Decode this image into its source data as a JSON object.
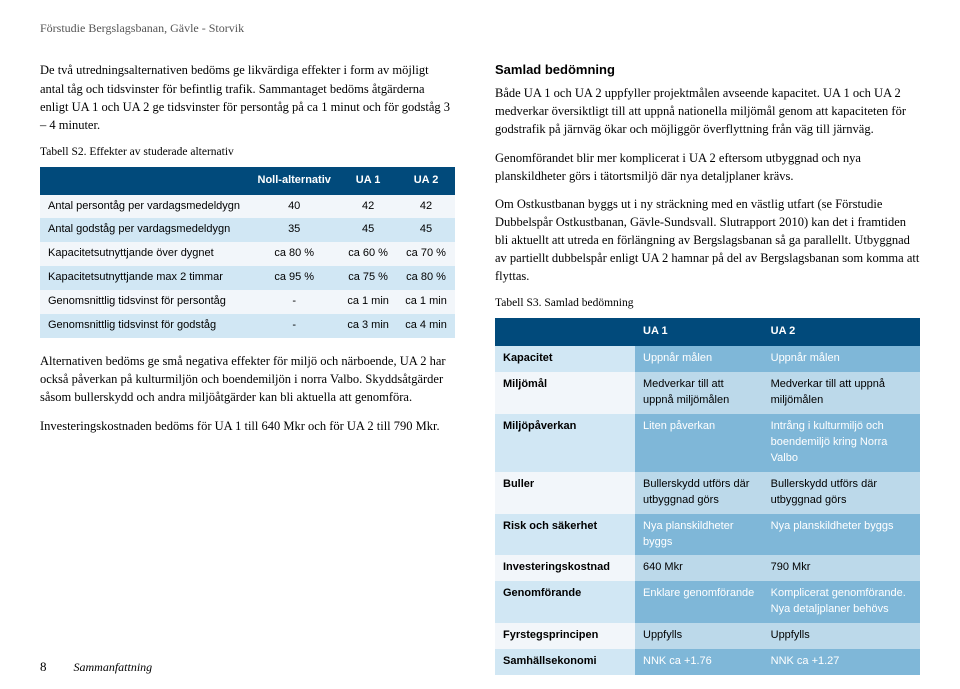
{
  "header": "Förstudie Bergslagsbanan, Gävle - Storvik",
  "left": {
    "p1": "De två utredningsalternativen bedöms ge likvärdiga effekter i form av möjligt antal tåg och tidsvinster för befintlig trafik. Sammantaget bedöms åtgärderna enligt UA 1 och UA 2 ge tidsvinster för persontåg på ca 1 minut och för godståg 3 – 4 minuter.",
    "tcap": "Tabell S2. Effekter av studerade alternativ",
    "tbl": {
      "headers": [
        "",
        "Noll-alternativ",
        "UA 1",
        "UA 2"
      ],
      "rows": [
        [
          "Antal persontåg per vardagsmedeldygn",
          "40",
          "42",
          "42"
        ],
        [
          "Antal godståg per vardagsmedeldygn",
          "35",
          "45",
          "45"
        ],
        [
          "Kapacitetsutnyttjande över dygnet",
          "ca 80 %",
          "ca 60 %",
          "ca 70 %"
        ],
        [
          "Kapacitetsutnyttjande max 2 timmar",
          "ca 95 %",
          "ca 75 %",
          "ca 80 %"
        ],
        [
          "Genomsnittlig tidsvinst för persontåg",
          "-",
          "ca 1 min",
          "ca 1 min"
        ],
        [
          "Genomsnittlig tidsvinst för godståg",
          "-",
          "ca 3 min",
          "ca 4 min"
        ]
      ]
    },
    "p2": "Alternativen bedöms ge små negativa effekter för miljö och närboende, UA 2 har också påverkan på kulturmiljön och boendemiljön i norra Valbo. Skyddsåtgärder såsom bullerskydd och andra miljöåtgärder kan bli aktuella att genomföra.",
    "p3": "Investeringskostnaden bedöms för UA 1 till 640 Mkr och för UA 2 till 790 Mkr."
  },
  "right": {
    "h": "Samlad bedömning",
    "p1": "Både UA 1 och UA 2 uppfyller projektmålen avseende kapacitet. UA 1 och UA 2 medverkar översiktligt till att uppnå nationella miljömål genom att kapaciteten för godstrafik på järnväg ökar och möjliggör överflyttning från väg till järnväg.",
    "p2": "Genomförandet blir mer komplicerat i UA 2 eftersom utbyggnad och nya planskildheter görs i tätortsmiljö där nya detaljplaner krävs.",
    "p3": "Om Ostkustbanan byggs ut i ny sträckning med en västlig utfart (se Förstudie Dubbelspår Ostkustbanan, Gävle-Sundsvall. Slutrapport 2010) kan det i framtiden bli aktuellt att utreda en förlängning av Bergslagsbanan så ga parallellt. Utbyggnad av partiellt dubbelspår enligt UA 2 hamnar på del av Bergslagsbanan som komma att flyttas.",
    "tcap": "Tabell S3. Samlad bedömning",
    "tbl": {
      "headers": [
        "",
        "UA 1",
        "UA 2"
      ],
      "rows": [
        [
          "Kapacitet",
          "Uppnår målen",
          "Uppnår målen"
        ],
        [
          "Miljömål",
          "Medverkar till att uppnå miljömålen",
          "Medverkar till att uppnå miljömålen"
        ],
        [
          "Miljöpåverkan",
          "Liten påverkan",
          "Intrång i kulturmiljö och boendemiljö kring Norra Valbo"
        ],
        [
          "Buller",
          "Bullerskydd utförs där utbyggnad görs",
          "Bullerskydd utförs där utbyggnad görs"
        ],
        [
          "Risk och säkerhet",
          "Nya planskildheter byggs",
          "Nya planskildheter byggs"
        ],
        [
          "Investeringskostnad",
          "640 Mkr",
          "790 Mkr"
        ],
        [
          "Genomförande",
          "Enklare genomförande",
          "Komplicerat genomförande. Nya detaljplaner behövs"
        ],
        [
          "Fyrstegsprincipen",
          "Uppfylls",
          "Uppfylls"
        ],
        [
          "Samhällsekonomi",
          "NNK ca +1.76",
          "NNK ca +1.27"
        ]
      ]
    }
  },
  "footer": {
    "page": "8",
    "section": "Sammanfattning"
  }
}
